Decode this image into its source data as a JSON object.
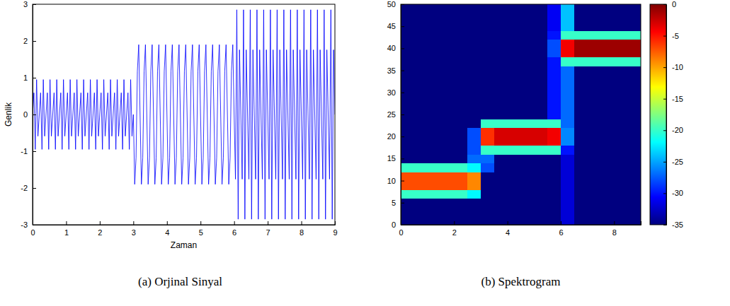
{
  "chart_data": [
    {
      "type": "line",
      "title": "(a) Orjinal Sinyal",
      "x_label": "Zaman",
      "y_label": "Genlik",
      "xlim": [
        0,
        9
      ],
      "xticks": [
        0,
        1,
        2,
        3,
        4,
        5,
        6,
        7,
        8,
        9
      ],
      "ylim": [
        -3,
        3
      ],
      "yticks": [
        -3,
        -2,
        -1,
        0,
        1,
        2,
        3
      ],
      "x": [
        0,
        0.04,
        0.08,
        0.12,
        0.16,
        0.2,
        0.24,
        0.28,
        0.32,
        0.36,
        0.4,
        0.44,
        0.48,
        0.52,
        0.56,
        0.6,
        0.64,
        0.68,
        0.72,
        0.76,
        0.8,
        0.84,
        0.88,
        0.92,
        0.96,
        1,
        1.04,
        1.08,
        1.12,
        1.16,
        1.2,
        1.24,
        1.28,
        1.32,
        1.36,
        1.4,
        1.44,
        1.48,
        1.52,
        1.56,
        1.6,
        1.64,
        1.68,
        1.72,
        1.76,
        1.8,
        1.84,
        1.88,
        1.92,
        1.96,
        2,
        2.04,
        2.08,
        2.12,
        2.16,
        2.2,
        2.24,
        2.28,
        2.32,
        2.36,
        2.4,
        2.44,
        2.48,
        2.52,
        2.56,
        2.6,
        2.64,
        2.68,
        2.72,
        2.76,
        2.8,
        2.84,
        2.88,
        2.92,
        2.96,
        3,
        3.04,
        3.08,
        3.12,
        3.16,
        3.2,
        3.24,
        3.28,
        3.32,
        3.36,
        3.4,
        3.44,
        3.48,
        3.52,
        3.56,
        3.6,
        3.64,
        3.68,
        3.72,
        3.76,
        3.8,
        3.84,
        3.88,
        3.92,
        3.96,
        4,
        4.04,
        4.08,
        4.12,
        4.16,
        4.2,
        4.24,
        4.28,
        4.32,
        4.36,
        4.4,
        4.44,
        4.48,
        4.52,
        4.56,
        4.6,
        4.64,
        4.68,
        4.72,
        4.76,
        4.8,
        4.84,
        4.88,
        4.92,
        4.96,
        5,
        5.04,
        5.08,
        5.12,
        5.16,
        5.2,
        5.24,
        5.28,
        5.32,
        5.36,
        5.4,
        5.44,
        5.48,
        5.52,
        5.56,
        5.6,
        5.64,
        5.68,
        5.72,
        5.76,
        5.8,
        5.84,
        5.88,
        5.92,
        5.96,
        6,
        6.04,
        6.08,
        6.12,
        6.16,
        6.2,
        6.24,
        6.28,
        6.32,
        6.36,
        6.4,
        6.44,
        6.48,
        6.52,
        6.56,
        6.6,
        6.64,
        6.68,
        6.72,
        6.76,
        6.8,
        6.84,
        6.88,
        6.92,
        6.96,
        7,
        7.04,
        7.08,
        7.12,
        7.16,
        7.2,
        7.24,
        7.28,
        7.32,
        7.36,
        7.4,
        7.44,
        7.48,
        7.52,
        7.56,
        7.6,
        7.64,
        7.68,
        7.72,
        7.76,
        7.8,
        7.84,
        7.88,
        7.92,
        7.96,
        8,
        8.04,
        8.08,
        8.12,
        8.16,
        8.2,
        8.24,
        8.28,
        8.32,
        8.36,
        8.4,
        8.44,
        8.48,
        8.52,
        8.56,
        8.6,
        8.64,
        8.68,
        8.72,
        8.76,
        8.8,
        8.84,
        8.88,
        8.92,
        8.96,
        9
      ],
      "series": [
        {
          "color": "#0000ff",
          "values": [
            0,
            0.59,
            -0.95,
            0.95,
            -0.59,
            0,
            0.59,
            -0.95,
            0.95,
            -0.59,
            0,
            0.59,
            -0.95,
            0.95,
            -0.59,
            0,
            0.59,
            -0.95,
            0.95,
            -0.59,
            0,
            0.59,
            -0.95,
            0.95,
            -0.59,
            0,
            0.59,
            -0.95,
            0.95,
            -0.59,
            0,
            0.59,
            -0.95,
            0.95,
            -0.59,
            0,
            0.59,
            -0.95,
            0.95,
            -0.59,
            0,
            0.59,
            -0.95,
            0.95,
            -0.59,
            0,
            0.59,
            -0.95,
            0.95,
            -0.59,
            0,
            0.59,
            -0.95,
            0.95,
            -0.59,
            0,
            0.59,
            -0.95,
            0.95,
            -0.59,
            0,
            0.59,
            -0.95,
            0.95,
            -0.59,
            0,
            0.59,
            -0.95,
            0.95,
            -0.59,
            0,
            0.59,
            -0.95,
            0.95,
            -0.59,
            0,
            -1.9,
            -1.18,
            1.18,
            1.9,
            0,
            -1.9,
            -1.18,
            1.18,
            1.9,
            0,
            -1.9,
            -1.18,
            1.18,
            1.9,
            0,
            -1.9,
            -1.18,
            1.18,
            1.9,
            0,
            -1.9,
            -1.18,
            1.18,
            1.9,
            0,
            -1.9,
            -1.18,
            1.18,
            1.9,
            0,
            -1.9,
            -1.18,
            1.18,
            1.9,
            0,
            -1.9,
            -1.18,
            1.18,
            1.9,
            0,
            -1.9,
            -1.18,
            1.18,
            1.9,
            0,
            -1.9,
            -1.18,
            1.18,
            1.9,
            0,
            -1.9,
            -1.18,
            1.18,
            1.9,
            0,
            -1.9,
            -1.18,
            1.18,
            1.9,
            0,
            -1.9,
            -1.18,
            1.18,
            1.9,
            0,
            -1.9,
            -1.18,
            1.18,
            1.9,
            0,
            -1.9,
            -1.18,
            1.18,
            1.9,
            0,
            -1.76,
            2.85,
            -2.85,
            1.76,
            0,
            -1.76,
            2.85,
            -2.85,
            1.76,
            0,
            -1.76,
            2.85,
            -2.85,
            1.76,
            0,
            -1.76,
            2.85,
            -2.85,
            1.76,
            0,
            -1.76,
            2.85,
            -2.85,
            1.76,
            0,
            -1.76,
            2.85,
            -2.85,
            1.76,
            0,
            -1.76,
            2.85,
            -2.85,
            1.76,
            0,
            -1.76,
            2.85,
            -2.85,
            1.76,
            0,
            -1.76,
            2.85,
            -2.85,
            1.76,
            0,
            -1.76,
            2.85,
            -2.85,
            1.76,
            0,
            -1.76,
            2.85,
            -2.85,
            1.76,
            0,
            -1.76,
            2.85,
            -2.85,
            1.76,
            0,
            -1.76,
            2.85,
            -2.85,
            1.76,
            0,
            -1.76,
            2.85,
            -2.85,
            1.76,
            0,
            -1.76,
            2.85,
            -2.85,
            1.76,
            0
          ]
        }
      ]
    },
    {
      "type": "heatmap",
      "title": "(b) Spektrogram",
      "xlim": [
        0,
        9
      ],
      "xticks": [
        0,
        2,
        4,
        6,
        8
      ],
      "ylim": [
        0,
        50
      ],
      "yticks": [
        0,
        5,
        10,
        15,
        20,
        25,
        30,
        35,
        40,
        45,
        50
      ],
      "zlim": [
        -35,
        0
      ],
      "zticks": [
        -35,
        -30,
        -25,
        -20,
        -15,
        -10,
        -5,
        0
      ],
      "x": [
        0,
        0.5,
        1,
        1.5,
        2,
        2.5,
        3,
        3.5,
        4,
        4.5,
        5,
        5.5,
        6,
        6.5,
        7,
        7.5,
        8,
        8.5,
        9
      ],
      "y": [
        0,
        2,
        4,
        6,
        8,
        10,
        12,
        14,
        16,
        18,
        20,
        22,
        24,
        26,
        28,
        30,
        32,
        34,
        36,
        38,
        40,
        42,
        44,
        46,
        48,
        50
      ],
      "z": [
        [
          -35,
          -35,
          -35,
          -35,
          -35,
          -35,
          -35,
          -35,
          -35,
          -35,
          -35,
          -35,
          -32,
          -35,
          -35,
          -35,
          -35,
          -35
        ],
        [
          -35,
          -35,
          -35,
          -35,
          -35,
          -35,
          -35,
          -35,
          -35,
          -35,
          -35,
          -35,
          -32,
          -35,
          -35,
          -35,
          -35,
          -35
        ],
        [
          -35,
          -35,
          -35,
          -35,
          -35,
          -35,
          -35,
          -35,
          -35,
          -35,
          -35,
          -35,
          -32,
          -35,
          -35,
          -35,
          -35,
          -35
        ],
        [
          -20,
          -20,
          -20,
          -20,
          -20,
          -22,
          -35,
          -35,
          -35,
          -35,
          -35,
          -35,
          -32,
          -35,
          -35,
          -35,
          -35,
          -35
        ],
        [
          -7,
          -7,
          -7,
          -7,
          -7,
          -9,
          -35,
          -35,
          -35,
          -35,
          -35,
          -35,
          -32,
          -35,
          -35,
          -35,
          -35,
          -35
        ],
        [
          -7,
          -7,
          -7,
          -7,
          -7,
          -9,
          -35,
          -35,
          -35,
          -35,
          -35,
          -35,
          -32,
          -35,
          -35,
          -35,
          -35,
          -35
        ],
        [
          -20,
          -20,
          -20,
          -20,
          -20,
          -22,
          -28,
          -35,
          -35,
          -35,
          -35,
          -35,
          -32,
          -35,
          -35,
          -35,
          -35,
          -35
        ],
        [
          -35,
          -35,
          -35,
          -35,
          -35,
          -27,
          -27,
          -35,
          -35,
          -35,
          -35,
          -35,
          -32,
          -35,
          -35,
          -35,
          -35,
          -35
        ],
        [
          -35,
          -35,
          -35,
          -35,
          -35,
          -28,
          -20,
          -20,
          -20,
          -20,
          -20,
          -20,
          -30,
          -35,
          -35,
          -35,
          -35,
          -35
        ],
        [
          -35,
          -35,
          -35,
          -35,
          -35,
          -28,
          -6,
          -3,
          -3,
          -3,
          -3,
          -4,
          -26,
          -35,
          -35,
          -35,
          -35,
          -35
        ],
        [
          -35,
          -35,
          -35,
          -35,
          -35,
          -28,
          -6,
          -3,
          -3,
          -3,
          -3,
          -4,
          -26,
          -35,
          -35,
          -35,
          -35,
          -35
        ],
        [
          -35,
          -35,
          -35,
          -35,
          -35,
          -35,
          -20,
          -20,
          -20,
          -20,
          -20,
          -20,
          -27,
          -35,
          -35,
          -35,
          -35,
          -35
        ],
        [
          -35,
          -35,
          -35,
          -35,
          -35,
          -35,
          -35,
          -35,
          -35,
          -35,
          -35,
          -30,
          -27,
          -35,
          -35,
          -35,
          -35,
          -35
        ],
        [
          -35,
          -35,
          -35,
          -35,
          -35,
          -35,
          -35,
          -35,
          -35,
          -35,
          -35,
          -30,
          -27,
          -35,
          -35,
          -35,
          -35,
          -35
        ],
        [
          -35,
          -35,
          -35,
          -35,
          -35,
          -35,
          -35,
          -35,
          -35,
          -35,
          -35,
          -30,
          -27,
          -35,
          -35,
          -35,
          -35,
          -35
        ],
        [
          -35,
          -35,
          -35,
          -35,
          -35,
          -35,
          -35,
          -35,
          -35,
          -35,
          -35,
          -30,
          -27,
          -35,
          -35,
          -35,
          -35,
          -35
        ],
        [
          -35,
          -35,
          -35,
          -35,
          -35,
          -35,
          -35,
          -35,
          -35,
          -35,
          -35,
          -30,
          -27,
          -35,
          -35,
          -35,
          -35,
          -35
        ],
        [
          -35,
          -35,
          -35,
          -35,
          -35,
          -35,
          -35,
          -35,
          -35,
          -35,
          -35,
          -30,
          -27,
          -35,
          -35,
          -35,
          -35,
          -35
        ],
        [
          -35,
          -35,
          -35,
          -35,
          -35,
          -35,
          -35,
          -35,
          -35,
          -35,
          -35,
          -30,
          -20,
          -20,
          -20,
          -20,
          -20,
          -20
        ],
        [
          -35,
          -35,
          -35,
          -35,
          -35,
          -35,
          -35,
          -35,
          -35,
          -35,
          -35,
          -28,
          -4,
          -1,
          -1,
          -1,
          -1,
          -1
        ],
        [
          -35,
          -35,
          -35,
          -35,
          -35,
          -35,
          -35,
          -35,
          -35,
          -35,
          -35,
          -28,
          -4,
          -1,
          -1,
          -1,
          -1,
          -1
        ],
        [
          -35,
          -35,
          -35,
          -35,
          -35,
          -35,
          -35,
          -35,
          -35,
          -35,
          -35,
          -30,
          -20,
          -20,
          -20,
          -20,
          -20,
          -20
        ],
        [
          -35,
          -35,
          -35,
          -35,
          -35,
          -35,
          -35,
          -35,
          -35,
          -35,
          -35,
          -31,
          -24,
          -35,
          -35,
          -35,
          -35,
          -35
        ],
        [
          -35,
          -35,
          -35,
          -35,
          -35,
          -35,
          -35,
          -35,
          -35,
          -35,
          -35,
          -31,
          -24,
          -35,
          -35,
          -35,
          -35,
          -35
        ],
        [
          -35,
          -35,
          -35,
          -35,
          -35,
          -35,
          -35,
          -35,
          -35,
          -35,
          -35,
          -31,
          -24,
          -35,
          -35,
          -35,
          -35,
          -35
        ]
      ]
    }
  ]
}
